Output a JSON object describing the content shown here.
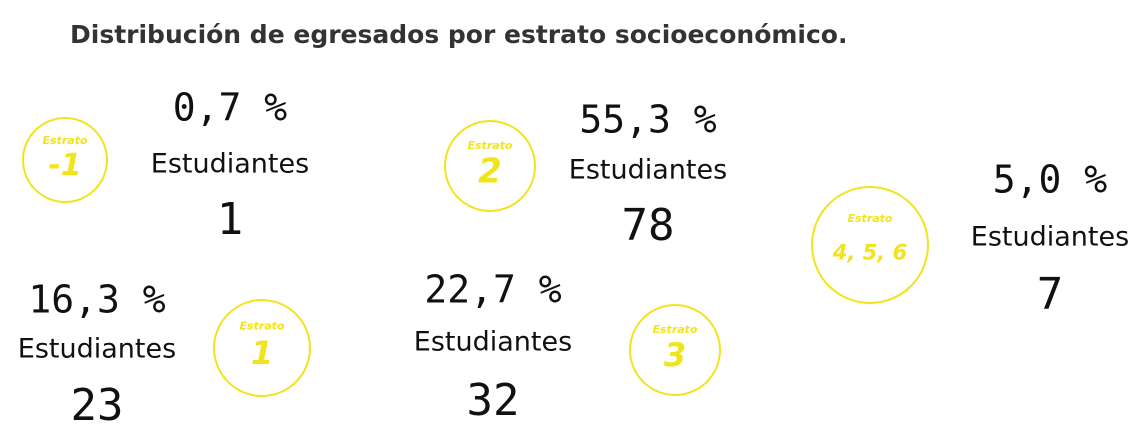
{
  "header": {
    "title": "Distribución de egresados por estrato socioeconómico."
  },
  "groups": [
    {
      "badge_label": "Estrato",
      "stratum": "-1",
      "percent": "0,7 %",
      "label": "Estudiantes",
      "count": "1"
    },
    {
      "badge_label": "Estrato",
      "stratum": "2",
      "percent": "55,3 %",
      "label": "Estudiantes",
      "count": "78"
    },
    {
      "badge_label": "Estrato",
      "stratum": "4, 5, 6",
      "percent": "5,0 %",
      "label": "Estudiantes",
      "count": "7"
    },
    {
      "badge_label": "Estrato",
      "stratum": "1",
      "percent": "16,3 %",
      "label": "Estudiantes",
      "count": "23"
    },
    {
      "badge_label": "Estrato",
      "stratum": "3",
      "percent": "22,7 %",
      "label": "Estudiantes",
      "count": "32"
    }
  ]
}
